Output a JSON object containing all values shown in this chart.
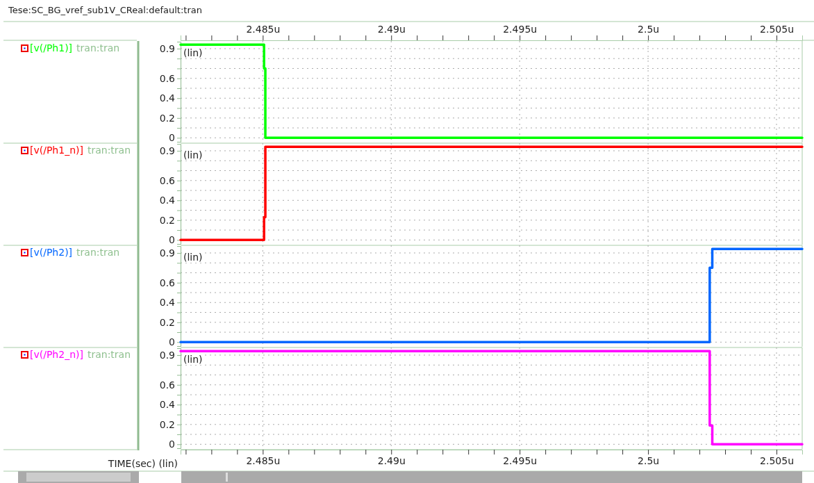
{
  "chart_data": [
    {
      "type": "line",
      "title": "Tese:SC_BG_vref_sub1V_CReal:default:tran",
      "annotations": [
        "tran:tran",
        "(lin)"
      ],
      "series": [
        {
          "name": "[v(/Ph1)]",
          "color": "#00ff00",
          "x": [
            2.4818,
            2.48505,
            2.48505,
            2.4851,
            2.4851,
            2.506
          ],
          "values": [
            0.94,
            0.94,
            0.7,
            0.7,
            0,
            0
          ]
        }
      ],
      "xlim": [
        2.4818,
        2.506
      ],
      "xticks": [
        {
          "value": 2.482,
          "label": null
        },
        {
          "value": 2.483,
          "label": null
        },
        {
          "value": 2.484,
          "label": null
        },
        {
          "value": 2.485,
          "label": "2.485u"
        },
        {
          "value": 2.486,
          "label": null
        },
        {
          "value": 2.487,
          "label": null
        },
        {
          "value": 2.488,
          "label": null
        },
        {
          "value": 2.489,
          "label": null
        },
        {
          "value": 2.49,
          "label": "2.49u"
        },
        {
          "value": 2.491,
          "label": null
        },
        {
          "value": 2.492,
          "label": null
        },
        {
          "value": 2.493,
          "label": null
        },
        {
          "value": 2.494,
          "label": null
        },
        {
          "value": 2.495,
          "label": "2.495u"
        },
        {
          "value": 2.496,
          "label": null
        },
        {
          "value": 2.497,
          "label": null
        },
        {
          "value": 2.498,
          "label": null
        },
        {
          "value": 2.499,
          "label": null
        },
        {
          "value": 2.5,
          "label": "2.5u"
        },
        {
          "value": 2.501,
          "label": null
        },
        {
          "value": 2.502,
          "label": null
        },
        {
          "value": 2.503,
          "label": null
        },
        {
          "value": 2.504,
          "label": null
        },
        {
          "value": 2.505,
          "label": "2.505u"
        }
      ],
      "ylim": [
        -0.04,
        0.97
      ],
      "yticks": [
        0,
        {
          "value": 0.1,
          "label": null
        },
        0.2,
        {
          "value": 0.3,
          "label": null
        },
        0.4,
        {
          "value": 0.5,
          "label": null
        },
        0.6,
        {
          "value": 0.7,
          "label": null
        },
        {
          "value": 0.8,
          "label": null
        },
        0.9
      ],
      "grid": true,
      "legend": "left"
    },
    {
      "type": "line",
      "annotations": [
        "tran:tran",
        "(lin)"
      ],
      "series": [
        {
          "name": "[v(/Ph1_n)]",
          "color": "#ff0000",
          "x": [
            2.4818,
            2.48505,
            2.48505,
            2.4851,
            2.4851,
            2.506
          ],
          "values": [
            0,
            0,
            0.23,
            0.23,
            0.94,
            0.94
          ]
        }
      ],
      "xlim": [
        2.4818,
        2.506
      ],
      "xticks": [
        {
          "value": 2.485,
          "label": null
        },
        {
          "value": 2.49,
          "label": null
        },
        {
          "value": 2.495,
          "label": null
        },
        {
          "value": 2.5,
          "label": null
        },
        {
          "value": 2.505,
          "label": null
        }
      ],
      "ylim": [
        -0.04,
        0.97
      ],
      "yticks": [
        0,
        {
          "value": 0.1,
          "label": null
        },
        0.2,
        {
          "value": 0.3,
          "label": null
        },
        0.4,
        {
          "value": 0.5,
          "label": null
        },
        0.6,
        {
          "value": 0.7,
          "label": null
        },
        {
          "value": 0.8,
          "label": null
        },
        0.9
      ],
      "grid": true,
      "legend": "left",
      "tick_labels": "y"
    },
    {
      "type": "line",
      "annotations": [
        "tran:tran",
        "(lin)"
      ],
      "series": [
        {
          "name": "[v(/Ph2)]",
          "color": "#0066ff",
          "x": [
            2.4818,
            2.5024,
            2.5024,
            2.5025,
            2.5025,
            2.506
          ],
          "values": [
            0,
            0,
            0.75,
            0.75,
            0.94,
            0.94
          ]
        }
      ],
      "xlim": [
        2.4818,
        2.506
      ],
      "xticks": [
        {
          "value": 2.485,
          "label": null
        },
        {
          "value": 2.49,
          "label": null
        },
        {
          "value": 2.495,
          "label": null
        },
        {
          "value": 2.5,
          "label": null
        },
        {
          "value": 2.505,
          "label": null
        }
      ],
      "ylim": [
        -0.04,
        0.97
      ],
      "yticks": [
        0,
        {
          "value": 0.1,
          "label": null
        },
        0.2,
        {
          "value": 0.3,
          "label": null
        },
        0.4,
        {
          "value": 0.5,
          "label": null
        },
        0.6,
        {
          "value": 0.7,
          "label": null
        },
        {
          "value": 0.8,
          "label": null
        },
        0.9
      ],
      "grid": true,
      "legend": "left",
      "tick_labels": "y"
    },
    {
      "type": "line",
      "annotations": [
        "tran:tran",
        "(lin)"
      ],
      "xlabel": "TIME(sec) (lin)",
      "series": [
        {
          "name": "[v(/Ph2_n)]",
          "color": "#ff00ff",
          "x": [
            2.4818,
            2.5024,
            2.5024,
            2.5025,
            2.5025,
            2.506
          ],
          "values": [
            0.94,
            0.94,
            0.19,
            0.19,
            0,
            0
          ]
        }
      ],
      "xlim": [
        2.4818,
        2.506
      ],
      "xticks": [
        {
          "value": 2.482,
          "label": null
        },
        {
          "value": 2.483,
          "label": null
        },
        {
          "value": 2.484,
          "label": null
        },
        {
          "value": 2.485,
          "label": "2.485u"
        },
        {
          "value": 2.486,
          "label": null
        },
        {
          "value": 2.487,
          "label": null
        },
        {
          "value": 2.488,
          "label": null
        },
        {
          "value": 2.489,
          "label": null
        },
        {
          "value": 2.49,
          "label": "2.49u"
        },
        {
          "value": 2.491,
          "label": null
        },
        {
          "value": 2.492,
          "label": null
        },
        {
          "value": 2.493,
          "label": null
        },
        {
          "value": 2.494,
          "label": null
        },
        {
          "value": 2.495,
          "label": "2.495u"
        },
        {
          "value": 2.496,
          "label": null
        },
        {
          "value": 2.497,
          "label": null
        },
        {
          "value": 2.498,
          "label": null
        },
        {
          "value": 2.499,
          "label": null
        },
        {
          "value": 2.5,
          "label": "2.5u"
        },
        {
          "value": 2.501,
          "label": null
        },
        {
          "value": 2.502,
          "label": null
        },
        {
          "value": 2.503,
          "label": null
        },
        {
          "value": 2.504,
          "label": null
        },
        {
          "value": 2.505,
          "label": "2.505u"
        }
      ],
      "ylim": [
        -0.04,
        0.97
      ],
      "yticks": [
        0,
        {
          "value": 0.1,
          "label": null
        },
        0.2,
        {
          "value": 0.3,
          "label": null
        },
        0.4,
        {
          "value": 0.5,
          "label": null
        },
        0.6,
        {
          "value": 0.7,
          "label": null
        },
        {
          "value": 0.8,
          "label": null
        },
        0.9
      ],
      "grid": true,
      "legend": "left"
    }
  ]
}
